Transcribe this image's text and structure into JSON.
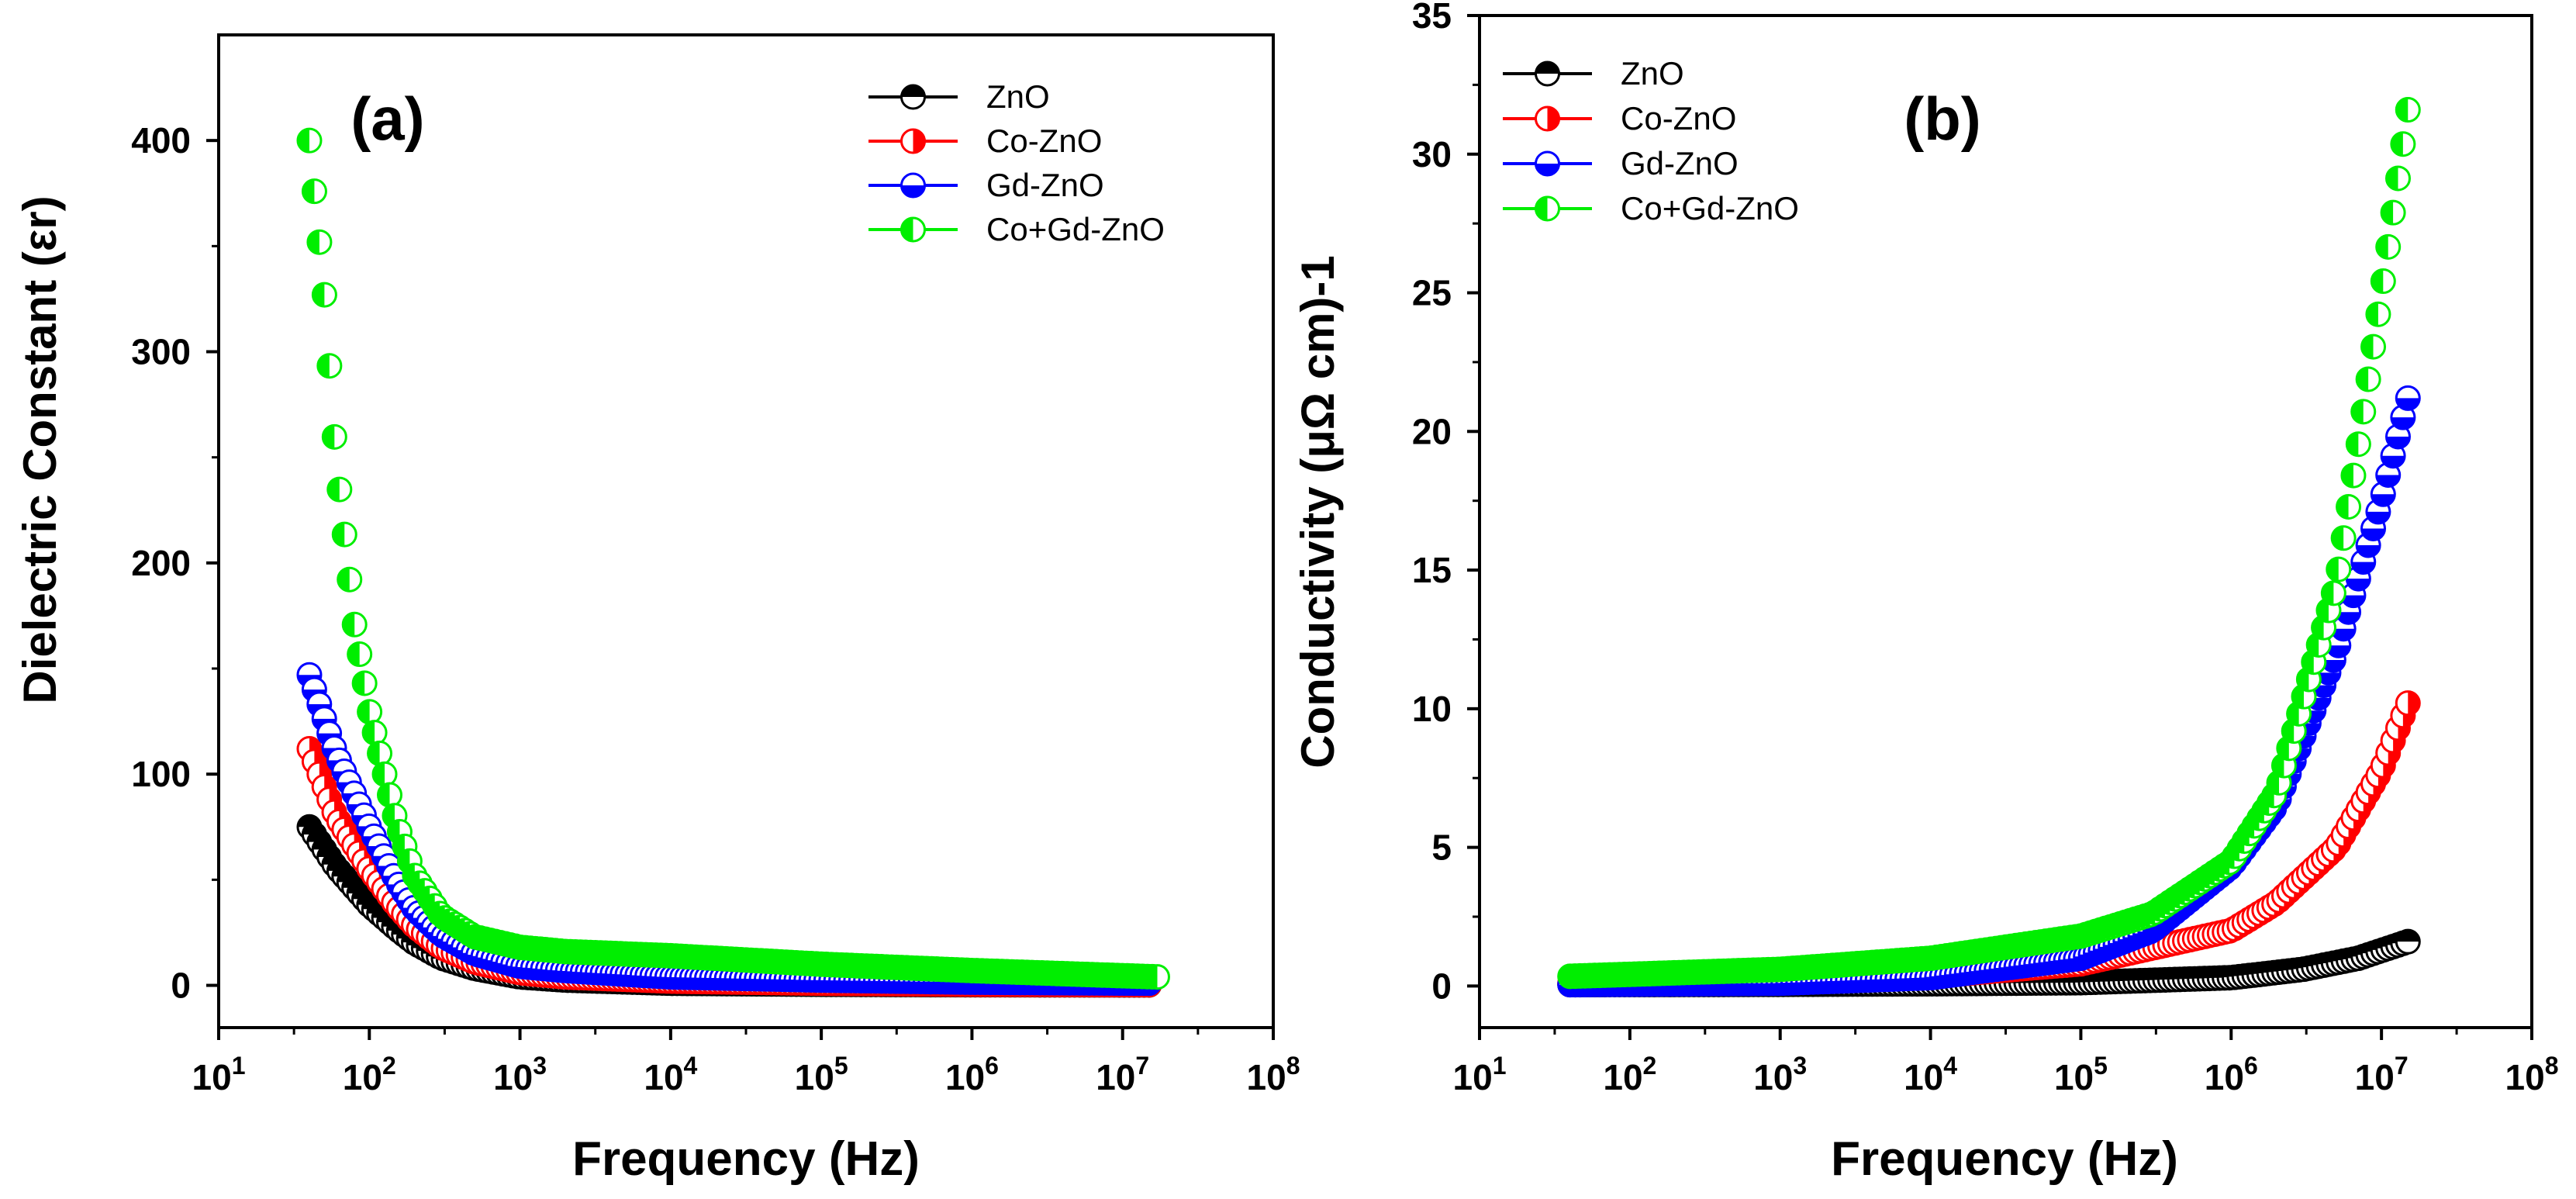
{
  "chart_data": [
    {
      "type": "scatter",
      "panel_label": "(a)",
      "xlabel": "Frequency (Hz)",
      "ylabel": "Dielectric Constant (εr)",
      "x_scale": "log",
      "xlim": [
        10,
        100000000
      ],
      "ylim": [
        -20,
        450
      ],
      "x_ticks": [
        {
          "base": "10",
          "exp": "1"
        },
        {
          "base": "10",
          "exp": "2"
        },
        {
          "base": "10",
          "exp": "3"
        },
        {
          "base": "10",
          "exp": "4"
        },
        {
          "base": "10",
          "exp": "5"
        },
        {
          "base": "10",
          "exp": "6"
        },
        {
          "base": "10",
          "exp": "7"
        },
        {
          "base": "10",
          "exp": "8"
        }
      ],
      "y_ticks": [
        0,
        100,
        200,
        300,
        400
      ],
      "legend": [
        "ZnO",
        "Co-ZnO",
        "Gd-ZnO",
        "Co+Gd-ZnO"
      ],
      "legend_position": "top-right",
      "series": [
        {
          "name": "ZnO",
          "color": "#000000",
          "fill": "top",
          "x": [
            40,
            60,
            100,
            150,
            200,
            300,
            500,
            1000,
            2000,
            10000,
            100000,
            1000000,
            15000000
          ],
          "y": [
            75,
            56,
            38,
            27,
            20,
            13,
            8,
            4,
            2.5,
            1,
            0.5,
            0.3,
            0.2
          ]
        },
        {
          "name": "Co-ZnO",
          "color": "#ff0000",
          "fill": "right",
          "x": [
            40,
            60,
            100,
            150,
            200,
            300,
            500,
            1000,
            2000,
            10000,
            100000,
            1000000,
            15000000
          ],
          "y": [
            112,
            80,
            55,
            38,
            28,
            18,
            11,
            6,
            4,
            2,
            1,
            0.5,
            0.3
          ]
        },
        {
          "name": "Gd-ZnO",
          "color": "#0000ff",
          "fill": "bottom",
          "x": [
            40,
            60,
            100,
            150,
            200,
            300,
            500,
            1000,
            2000,
            10000,
            100000,
            1000000,
            15000000
          ],
          "y": [
            147,
            110,
            75,
            50,
            36,
            24,
            15,
            9,
            7,
            4,
            2.5,
            1.5,
            1
          ]
        },
        {
          "name": "Co+Gd-ZnO",
          "color": "#00ee00",
          "fill": "left",
          "x": [
            40,
            50,
            60,
            80,
            100,
            150,
            200,
            300,
            500,
            1000,
            2000,
            10000,
            100000,
            1000000,
            17000000
          ],
          "y": [
            400,
            330,
            250,
            170,
            130,
            78,
            52,
            33,
            23,
            18,
            16,
            14,
            10,
            7,
            4
          ]
        }
      ]
    },
    {
      "type": "scatter",
      "panel_label": "(b)",
      "xlabel": "Frequency (Hz)",
      "ylabel": "Conductivity (μΩ cm)-1",
      "x_scale": "log",
      "xlim": [
        10,
        100000000
      ],
      "ylim": [
        -1.5,
        35
      ],
      "x_ticks": [
        {
          "base": "10",
          "exp": "1"
        },
        {
          "base": "10",
          "exp": "2"
        },
        {
          "base": "10",
          "exp": "3"
        },
        {
          "base": "10",
          "exp": "4"
        },
        {
          "base": "10",
          "exp": "5"
        },
        {
          "base": "10",
          "exp": "6"
        },
        {
          "base": "10",
          "exp": "7"
        },
        {
          "base": "10",
          "exp": "8"
        }
      ],
      "y_ticks": [
        0,
        5,
        10,
        15,
        20,
        25,
        30,
        35
      ],
      "legend": [
        "ZnO",
        "Co-ZnO",
        "Gd-ZnO",
        "Co+Gd-ZnO"
      ],
      "legend_position": "top-left",
      "series": [
        {
          "name": "ZnO",
          "color": "#000000",
          "fill": "top",
          "x": [
            40,
            1000,
            10000,
            100000,
            1000000,
            3000000,
            7000000,
            15000000
          ],
          "y": [
            0.05,
            0.06,
            0.08,
            0.12,
            0.3,
            0.6,
            1.0,
            1.6
          ]
        },
        {
          "name": "Co-ZnO",
          "color": "#ff0000",
          "fill": "right",
          "x": [
            40,
            1000,
            10000,
            100000,
            1000000,
            2000000,
            5000000,
            10000000,
            15000000
          ],
          "y": [
            0.1,
            0.2,
            0.35,
            0.8,
            2.0,
            3.0,
            5.0,
            7.8,
            10.2
          ]
        },
        {
          "name": "Gd-ZnO",
          "color": "#0000ff",
          "fill": "bottom",
          "x": [
            40,
            1000,
            10000,
            100000,
            300000,
            1000000,
            2000000,
            5000000,
            10000000,
            15000000
          ],
          "y": [
            0.05,
            0.1,
            0.3,
            1.0,
            2.0,
            4.3,
            6.5,
            12.0,
            17.5,
            21.2
          ]
        },
        {
          "name": "Co+Gd-ZnO",
          "color": "#00ee00",
          "fill": "left",
          "x": [
            40,
            1000,
            10000,
            100000,
            300000,
            1000000,
            2000000,
            5000000,
            7000000,
            10000000,
            15000000
          ],
          "y": [
            0.35,
            0.6,
            1.0,
            1.8,
            2.6,
            4.5,
            7.0,
            14.5,
            19.5,
            25.0,
            31.6
          ]
        }
      ]
    }
  ]
}
